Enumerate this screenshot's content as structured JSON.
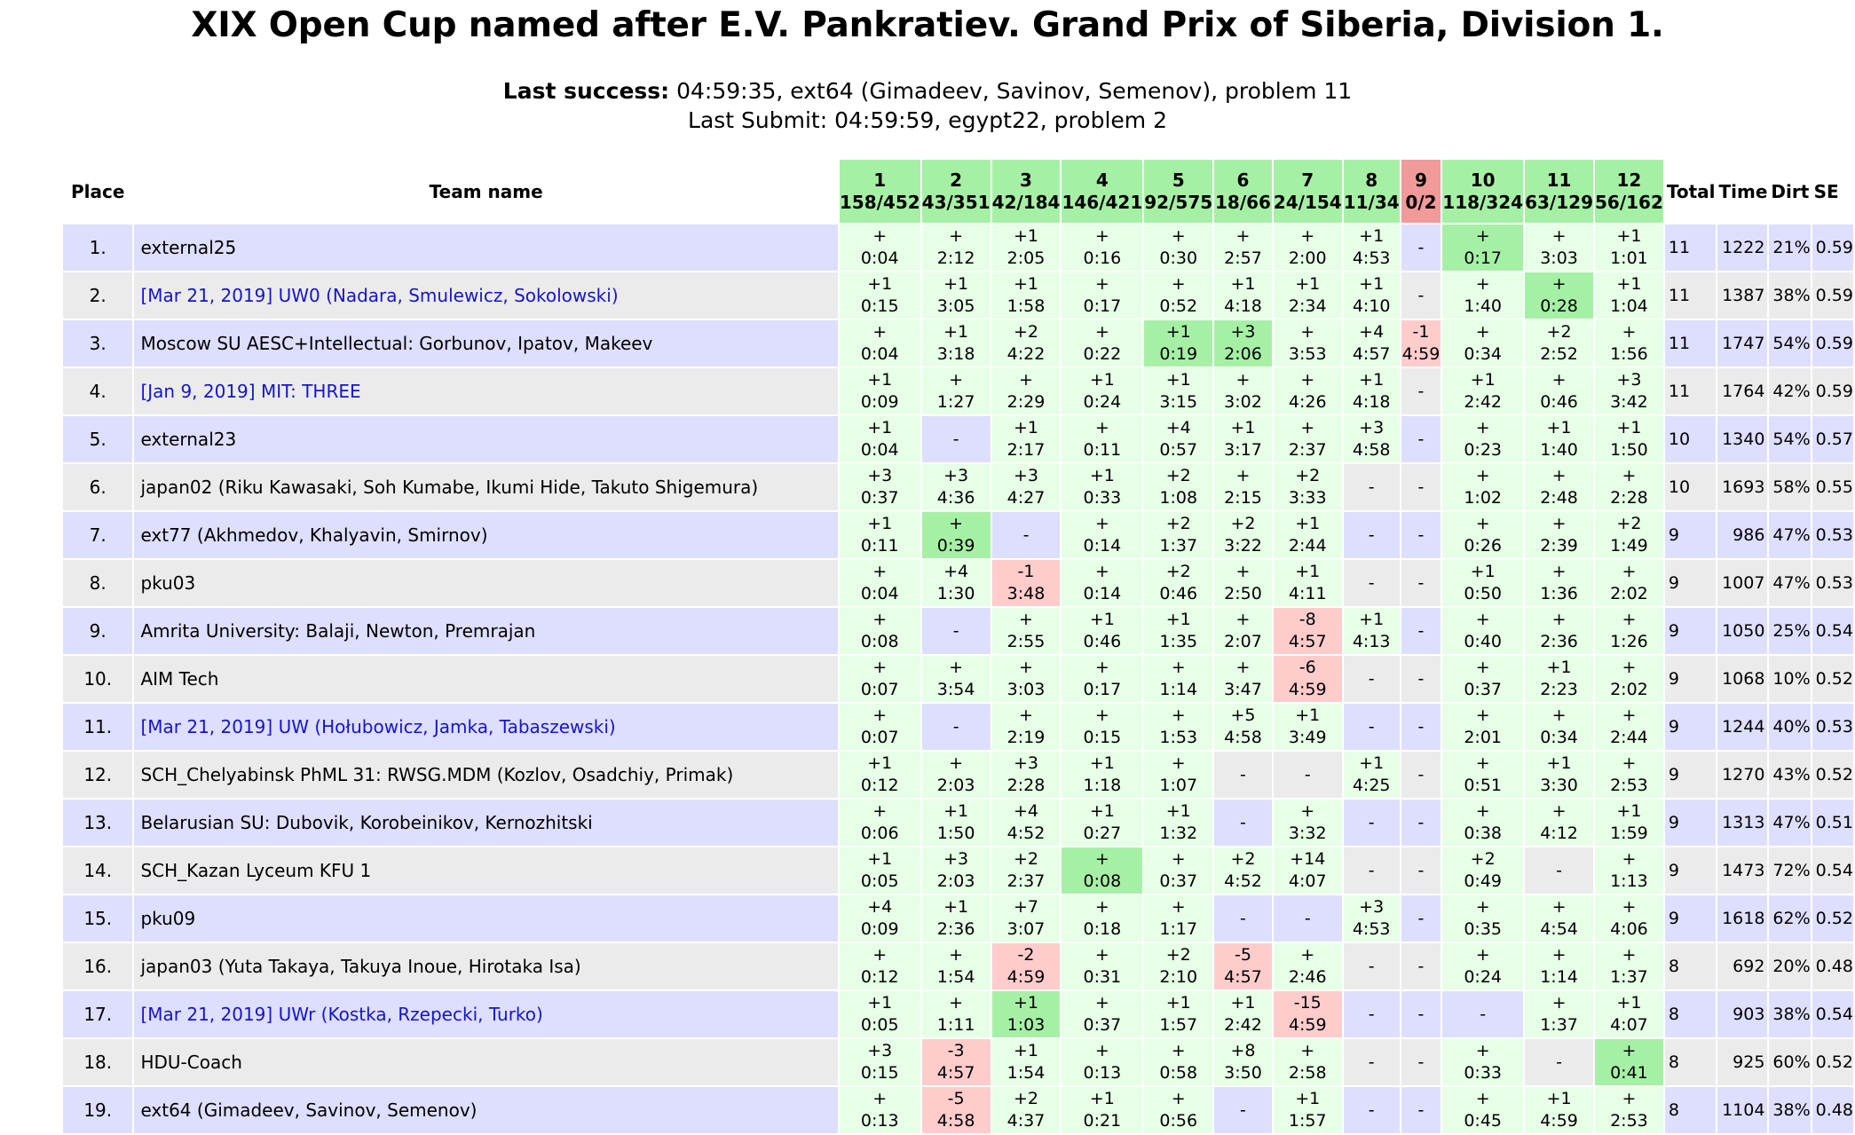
{
  "title": "XIX Open Cup named after E.V. Pankratiev. Grand Prix of Siberia, Division 1.",
  "last_success_label": "Last success:",
  "last_success_value": " 04:59:35, ext64 (Gimadeev, Savinov, Semenov), problem 11",
  "last_submit": "Last Submit: 04:59:59, egypt22, problem 2",
  "headers": {
    "place": "Place",
    "team": "Team name",
    "total": "Total",
    "time": "Time",
    "dirt": "Dirt",
    "se": "SE"
  },
  "problems": [
    {
      "id": "1",
      "stat": "158/452"
    },
    {
      "id": "2",
      "stat": "43/351"
    },
    {
      "id": "3",
      "stat": "42/184"
    },
    {
      "id": "4",
      "stat": "146/421"
    },
    {
      "id": "5",
      "stat": "92/575"
    },
    {
      "id": "6",
      "stat": "18/66"
    },
    {
      "id": "7",
      "stat": "24/154"
    },
    {
      "id": "8",
      "stat": "11/34"
    },
    {
      "id": "9",
      "stat": "0/2"
    },
    {
      "id": "10",
      "stat": "118/324"
    },
    {
      "id": "11",
      "stat": "63/129"
    },
    {
      "id": "12",
      "stat": "56/162"
    }
  ],
  "colors": {
    "solved": "#e6ffe6",
    "first_solve": "#a6f0a6",
    "failed": "#ffcccc",
    "row_even": "#ebebeb",
    "row_odd": "#dedeff",
    "link": "#1515c8"
  },
  "rows": [
    {
      "place": "1.",
      "team": "external25",
      "link": false,
      "total": "11",
      "time": "1222",
      "dirt": "21%",
      "se": "0.59",
      "cells": [
        "+|0:04|ok",
        "+|2:12|ok",
        "+1|2:05|ok",
        "+|0:16|ok",
        "+|0:30|ok",
        "+|2:57|ok",
        "+|2:00|ok",
        "+1|4:53|ok",
        "-||",
        "+|0:17|first",
        "+|3:03|ok",
        "+1|1:01|ok"
      ]
    },
    {
      "place": "2.",
      "team": "[Mar 21, 2019] UW0 (Nadara, Smulewicz, Sokolowski)",
      "link": true,
      "total": "11",
      "time": "1387",
      "dirt": "38%",
      "se": "0.59",
      "cells": [
        "+1|0:15|ok",
        "+1|3:05|ok",
        "+1|1:58|ok",
        "+|0:17|ok",
        "+|0:52|ok",
        "+1|4:18|ok",
        "+1|2:34|ok",
        "+1|4:10|ok",
        "-||",
        "+|1:40|ok",
        "+|0:28|first",
        "+1|1:04|ok"
      ]
    },
    {
      "place": "3.",
      "team": "Moscow SU AESC+Intellectual: Gorbunov, Ipatov, Makeev",
      "link": false,
      "total": "11",
      "time": "1747",
      "dirt": "54%",
      "se": "0.59",
      "cells": [
        "+|0:04|ok",
        "+1|3:18|ok",
        "+2|4:22|ok",
        "+|0:22|ok",
        "+1|0:19|first",
        "+3|2:06|first",
        "+|3:53|ok",
        "+4|4:57|ok",
        "-1|4:59|fail",
        "+|0:34|ok",
        "+2|2:52|ok",
        "+|1:56|ok"
      ]
    },
    {
      "place": "4.",
      "team": "[Jan 9, 2019] MIT: THREE",
      "link": true,
      "total": "11",
      "time": "1764",
      "dirt": "42%",
      "se": "0.59",
      "cells": [
        "+1|0:09|ok",
        "+|1:27|ok",
        "+|2:29|ok",
        "+1|0:24|ok",
        "+1|3:15|ok",
        "+|3:02|ok",
        "+|4:26|ok",
        "+1|4:18|ok",
        "-||",
        "+1|2:42|ok",
        "+|0:46|ok",
        "+3|3:42|ok"
      ]
    },
    {
      "place": "5.",
      "team": "external23",
      "link": false,
      "total": "10",
      "time": "1340",
      "dirt": "54%",
      "se": "0.57",
      "cells": [
        "+1|0:04|ok",
        "-||",
        "+1|2:17|ok",
        "+|0:11|ok",
        "+4|0:57|ok",
        "+1|3:17|ok",
        "+|2:37|ok",
        "+3|4:58|ok",
        "-||",
        "+|0:23|ok",
        "+1|1:40|ok",
        "+1|1:50|ok"
      ]
    },
    {
      "place": "6.",
      "team": "japan02 (Riku Kawasaki, Soh Kumabe, Ikumi Hide, Takuto Shigemura)",
      "link": false,
      "total": "10",
      "time": "1693",
      "dirt": "58%",
      "se": "0.55",
      "cells": [
        "+3|0:37|ok",
        "+3|4:36|ok",
        "+3|4:27|ok",
        "+1|0:33|ok",
        "+2|1:08|ok",
        "+|2:15|ok",
        "+2|3:33|ok",
        "-||",
        "-||",
        "+|1:02|ok",
        "+|2:48|ok",
        "+|2:28|ok"
      ]
    },
    {
      "place": "7.",
      "team": "ext77 (Akhmedov, Khalyavin, Smirnov)",
      "link": false,
      "total": "9",
      "time": "986",
      "dirt": "47%",
      "se": "0.53",
      "cells": [
        "+1|0:11|ok",
        "+|0:39|first",
        "-||",
        "+|0:14|ok",
        "+2|1:37|ok",
        "+2|3:22|ok",
        "+1|2:44|ok",
        "-||",
        "-||",
        "+|0:26|ok",
        "+|2:39|ok",
        "+2|1:49|ok"
      ]
    },
    {
      "place": "8.",
      "team": "pku03",
      "link": false,
      "total": "9",
      "time": "1007",
      "dirt": "47%",
      "se": "0.53",
      "cells": [
        "+|0:04|ok",
        "+4|1:30|ok",
        "-1|3:48|fail",
        "+|0:14|ok",
        "+2|0:46|ok",
        "+|2:50|ok",
        "+1|4:11|ok",
        "-||",
        "-||",
        "+1|0:50|ok",
        "+|1:36|ok",
        "+|2:02|ok"
      ]
    },
    {
      "place": "9.",
      "team": "Amrita University: Balaji, Newton, Premrajan",
      "link": false,
      "total": "9",
      "time": "1050",
      "dirt": "25%",
      "se": "0.54",
      "cells": [
        "+|0:08|ok",
        "-||",
        "+|2:55|ok",
        "+1|0:46|ok",
        "+1|1:35|ok",
        "+|2:07|ok",
        "-8|4:57|fail",
        "+1|4:13|ok",
        "-||",
        "+|0:40|ok",
        "+|2:36|ok",
        "+|1:26|ok"
      ]
    },
    {
      "place": "10.",
      "team": "AIM Tech",
      "link": false,
      "total": "9",
      "time": "1068",
      "dirt": "10%",
      "se": "0.52",
      "cells": [
        "+|0:07|ok",
        "+|3:54|ok",
        "+|3:03|ok",
        "+|0:17|ok",
        "+|1:14|ok",
        "+|3:47|ok",
        "-6|4:59|fail",
        "-||",
        "-||",
        "+|0:37|ok",
        "+1|2:23|ok",
        "+|2:02|ok"
      ]
    },
    {
      "place": "11.",
      "team": "[Mar 21, 2019] UW (Hołubowicz, Jamka, Tabaszewski)",
      "link": true,
      "total": "9",
      "time": "1244",
      "dirt": "40%",
      "se": "0.53",
      "cells": [
        "+|0:07|ok",
        "-||",
        "+|2:19|ok",
        "+|0:15|ok",
        "+|1:53|ok",
        "+5|4:58|ok",
        "+1|3:49|ok",
        "-||",
        "-||",
        "+|2:01|ok",
        "+|0:34|ok",
        "+|2:44|ok"
      ]
    },
    {
      "place": "12.",
      "team": "SCH_Chelyabinsk PhML 31: RWSG.MDM (Kozlov, Osadchiy, Primak)",
      "link": false,
      "total": "9",
      "time": "1270",
      "dirt": "43%",
      "se": "0.52",
      "cells": [
        "+1|0:12|ok",
        "+|2:03|ok",
        "+3|2:28|ok",
        "+1|1:18|ok",
        "+|1:07|ok",
        "-||",
        "-||",
        "+1|4:25|ok",
        "-||",
        "+|0:51|ok",
        "+1|3:30|ok",
        "+|2:53|ok"
      ]
    },
    {
      "place": "13.",
      "team": "Belarusian SU: Dubovik, Korobeinikov, Kernozhitski",
      "link": false,
      "total": "9",
      "time": "1313",
      "dirt": "47%",
      "se": "0.51",
      "cells": [
        "+|0:06|ok",
        "+1|1:50|ok",
        "+4|4:52|ok",
        "+1|0:27|ok",
        "+1|1:32|ok",
        "-||",
        "+|3:32|ok",
        "-||",
        "-||",
        "+|0:38|ok",
        "+|4:12|ok",
        "+1|1:59|ok"
      ]
    },
    {
      "place": "14.",
      "team": "SCH_Kazan Lyceum KFU 1",
      "link": false,
      "total": "9",
      "time": "1473",
      "dirt": "72%",
      "se": "0.54",
      "cells": [
        "+1|0:05|ok",
        "+3|2:03|ok",
        "+2|2:37|ok",
        "+|0:08|first",
        "+|0:37|ok",
        "+2|4:52|ok",
        "+14|4:07|ok",
        "-||",
        "-||",
        "+2|0:49|ok",
        "-||",
        "+|1:13|ok"
      ]
    },
    {
      "place": "15.",
      "team": "pku09",
      "link": false,
      "total": "9",
      "time": "1618",
      "dirt": "62%",
      "se": "0.52",
      "cells": [
        "+4|0:09|ok",
        "+1|2:36|ok",
        "+7|3:07|ok",
        "+|0:18|ok",
        "+|1:17|ok",
        "-||",
        "-||",
        "+3|4:53|ok",
        "-||",
        "+|0:35|ok",
        "+|4:54|ok",
        "+|4:06|ok"
      ]
    },
    {
      "place": "16.",
      "team": "japan03 (Yuta Takaya, Takuya Inoue, Hirotaka Isa)",
      "link": false,
      "total": "8",
      "time": "692",
      "dirt": "20%",
      "se": "0.48",
      "cells": [
        "+|0:12|ok",
        "+|1:54|ok",
        "-2|4:59|fail",
        "+|0:31|ok",
        "+2|2:10|ok",
        "-5|4:57|fail",
        "+|2:46|ok",
        "-||",
        "-||",
        "+|0:24|ok",
        "+|1:14|ok",
        "+|1:37|ok"
      ]
    },
    {
      "place": "17.",
      "team": "[Mar 21, 2019] UWr (Kostka, Rzepecki, Turko)",
      "link": true,
      "total": "8",
      "time": "903",
      "dirt": "38%",
      "se": "0.54",
      "cells": [
        "+1|0:05|ok",
        "+|1:11|ok",
        "+1|1:03|first",
        "+|0:37|ok",
        "+1|1:57|ok",
        "+1|2:42|ok",
        "-15|4:59|fail",
        "-||",
        "-||",
        "-||",
        "+|1:37|ok",
        "+1|4:07|ok"
      ]
    },
    {
      "place": "18.",
      "team": "HDU-Coach",
      "link": false,
      "total": "8",
      "time": "925",
      "dirt": "60%",
      "se": "0.52",
      "cells": [
        "+3|0:15|ok",
        "-3|4:57|fail",
        "+1|1:54|ok",
        "+|0:13|ok",
        "+|0:58|ok",
        "+8|3:50|ok",
        "+|2:58|ok",
        "-||",
        "-||",
        "+|0:33|ok",
        "-||",
        "+|0:41|first"
      ]
    },
    {
      "place": "19.",
      "team": "ext64 (Gimadeev, Savinov, Semenov)",
      "link": false,
      "total": "8",
      "time": "1104",
      "dirt": "38%",
      "se": "0.48",
      "cells": [
        "+|0:13|ok",
        "-5|4:58|fail",
        "+2|4:37|ok",
        "+1|0:21|ok",
        "+|0:56|ok",
        "-||",
        "+1|1:57|ok",
        "-||",
        "-||",
        "+|0:45|ok",
        "+1|4:59|ok",
        "+|2:53|ok"
      ]
    }
  ]
}
